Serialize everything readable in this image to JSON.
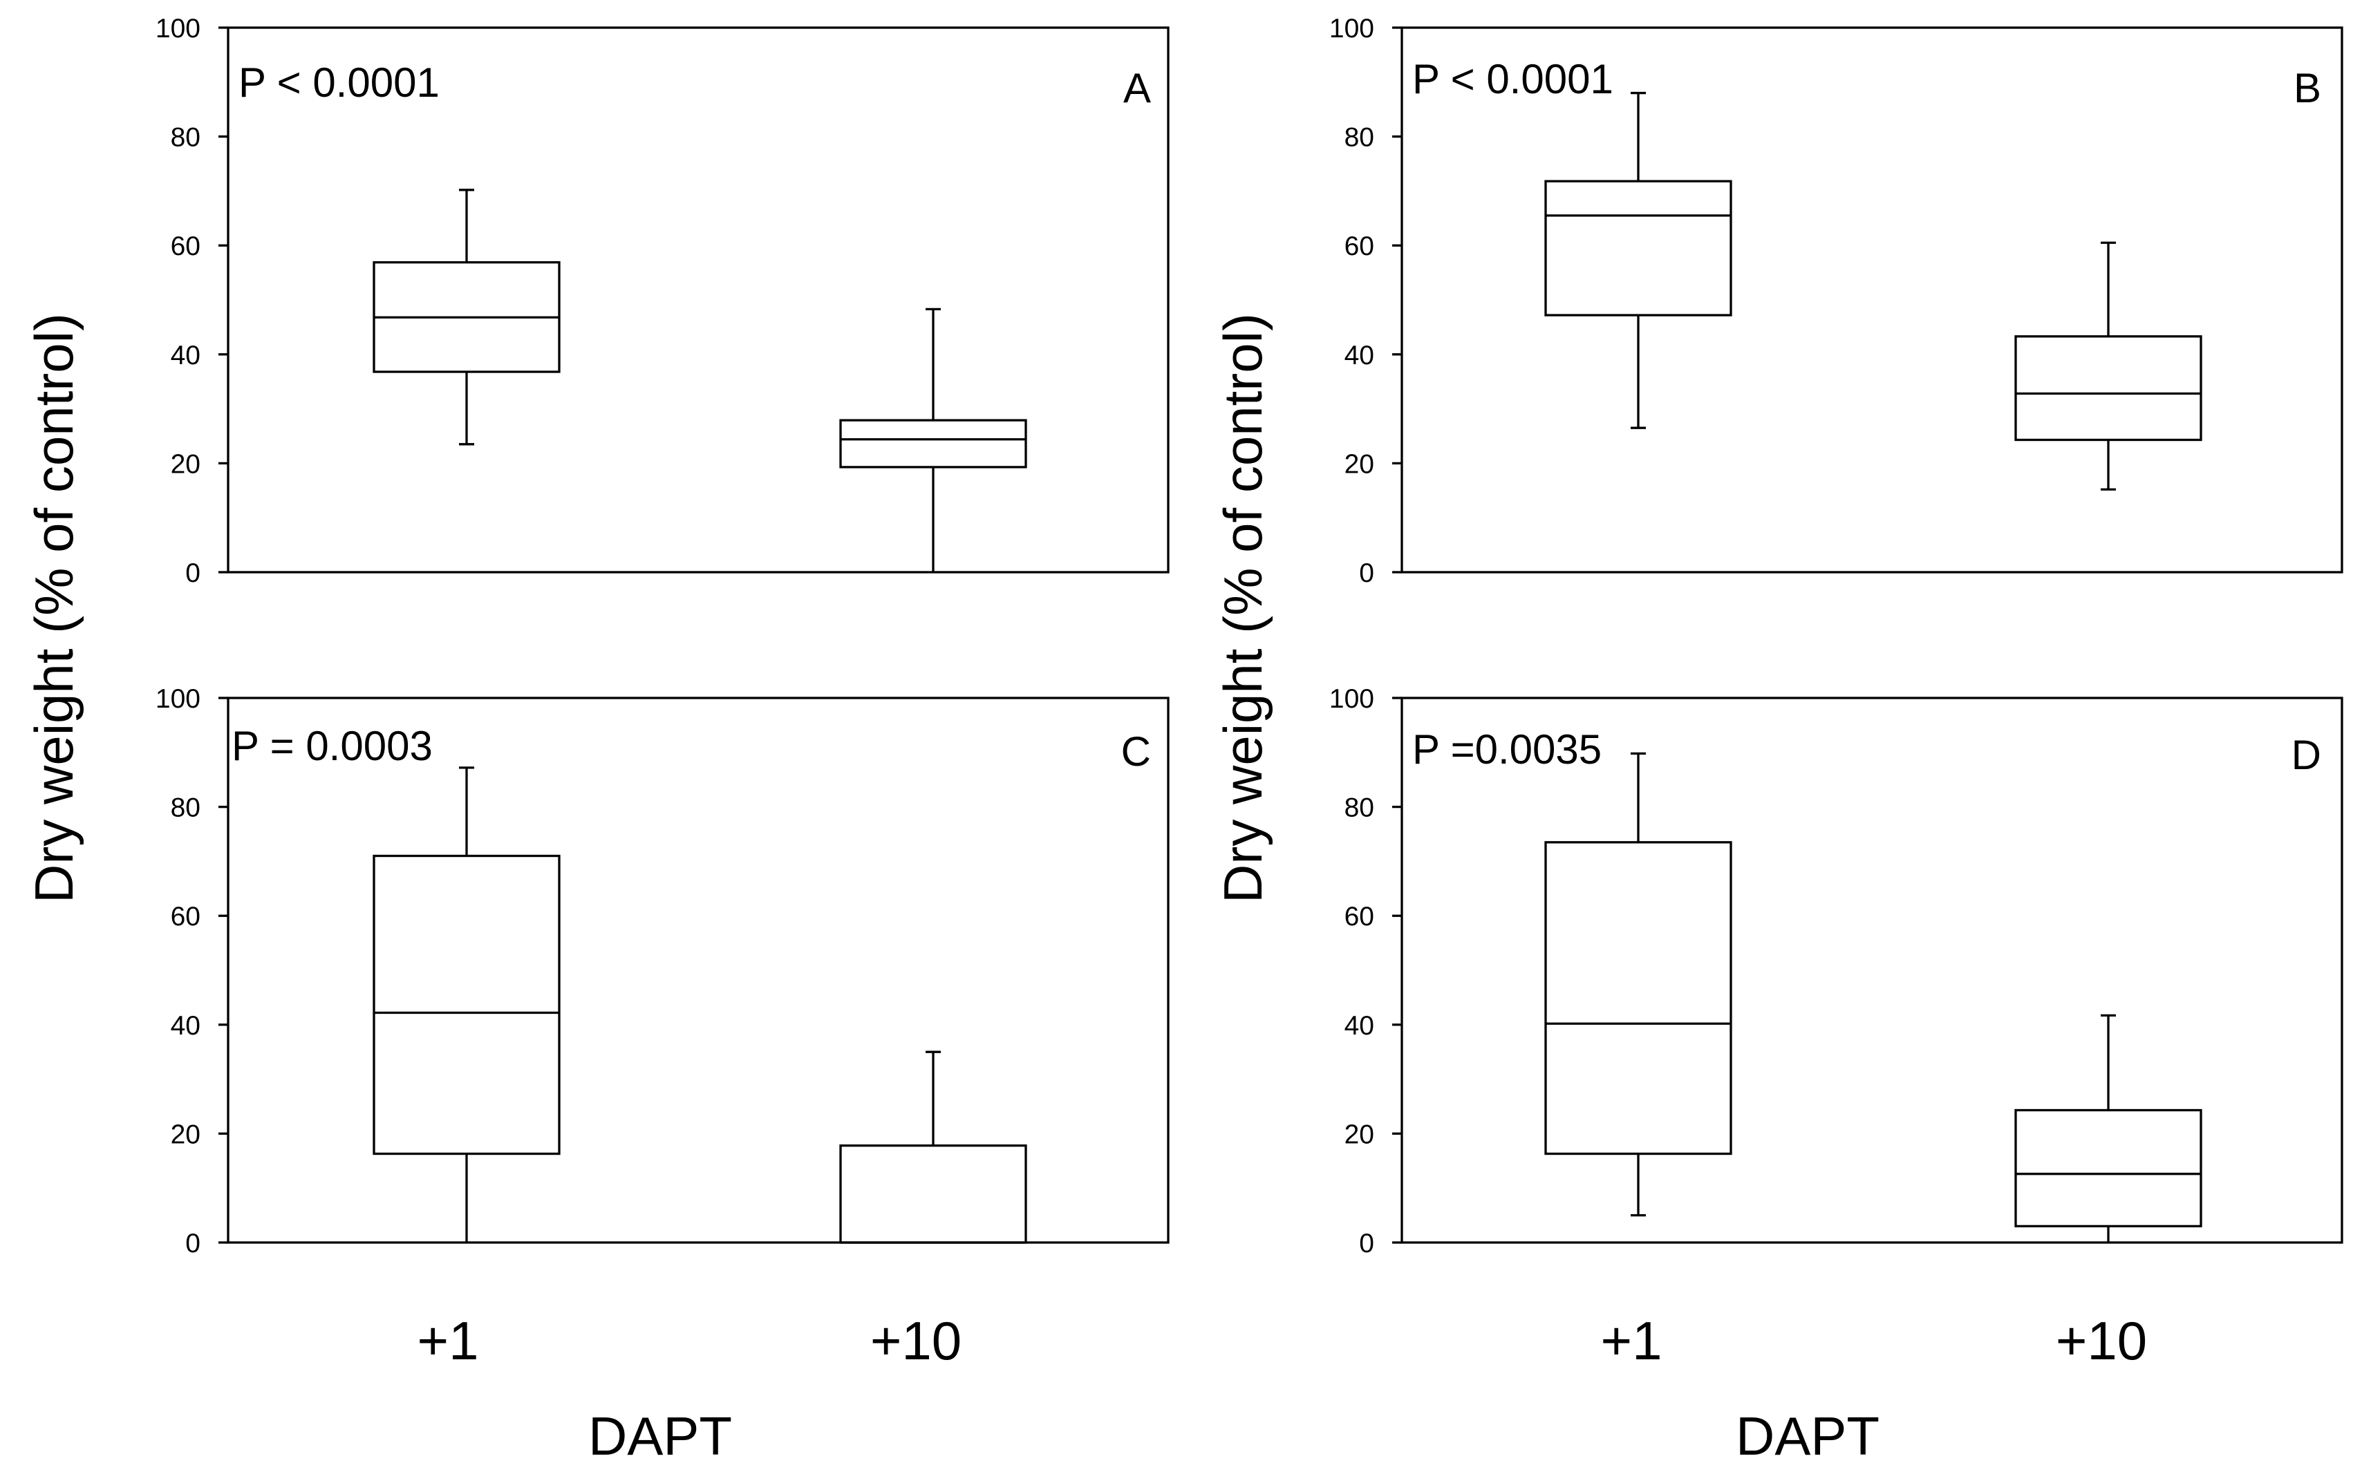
{
  "chart_data": [
    {
      "type": "box",
      "panel_letter": "A",
      "p_value_text": "P < 0.0001",
      "ylim": [
        0,
        100
      ],
      "yticks": [
        "0",
        "20",
        "40",
        "60",
        "80",
        "100"
      ],
      "ylabel": "Dry weight (% of control)",
      "xlabel": "DAPT",
      "categories": [
        "+1",
        "+10"
      ],
      "boxes": [
        {
          "category": "+1",
          "min": 23.5,
          "q1": 36.8,
          "median": 46.8,
          "q3": 56.9,
          "max": 70.2
        },
        {
          "category": "+10",
          "min": 0,
          "q1": 19.3,
          "median": 24.4,
          "q3": 27.9,
          "max": 48.3
        }
      ]
    },
    {
      "type": "box",
      "panel_letter": "B",
      "p_value_text": "P < 0.0001",
      "ylim": [
        0,
        100
      ],
      "yticks": [
        "0",
        "20",
        "40",
        "60",
        "80",
        "100"
      ],
      "ylabel": "Dry weight (% of control)",
      "xlabel": "DAPT",
      "categories": [
        "+1",
        "+10"
      ],
      "boxes": [
        {
          "category": "+1",
          "min": 26.5,
          "q1": 47.2,
          "median": 65.5,
          "q3": 71.8,
          "max": 88.0
        },
        {
          "category": "+10",
          "min": 15.2,
          "q1": 24.3,
          "median": 32.8,
          "q3": 43.3,
          "max": 60.5
        }
      ]
    },
    {
      "type": "box",
      "panel_letter": "C",
      "p_value_text": "P = 0.0003",
      "ylim": [
        0,
        100
      ],
      "yticks": [
        "0",
        "20",
        "40",
        "60",
        "80",
        "100"
      ],
      "ylabel": "Dry weight (% of control)",
      "xlabel": "DAPT",
      "categories": [
        "+1",
        "+10"
      ],
      "boxes": [
        {
          "category": "+1",
          "min": 0,
          "q1": 16.3,
          "median": 42.2,
          "q3": 71.0,
          "max": 87.2
        },
        {
          "category": "+10",
          "min": 0,
          "q1": 0,
          "median": 0,
          "q3": 17.8,
          "max": 35.0
        }
      ]
    },
    {
      "type": "box",
      "panel_letter": "D",
      "p_value_text": "P =0.0035",
      "ylim": [
        0,
        100
      ],
      "yticks": [
        "0",
        "20",
        "40",
        "60",
        "80",
        "100"
      ],
      "ylabel": "Dry weight (% of control)",
      "xlabel": "DAPT",
      "categories": [
        "+1",
        "+10"
      ],
      "boxes": [
        {
          "category": "+1",
          "min": 5.0,
          "q1": 16.3,
          "median": 40.2,
          "q3": 73.5,
          "max": 89.8
        },
        {
          "category": "+10",
          "min": 0,
          "q1": 3.0,
          "median": 12.6,
          "q3": 24.3,
          "max": 41.7
        }
      ]
    }
  ]
}
